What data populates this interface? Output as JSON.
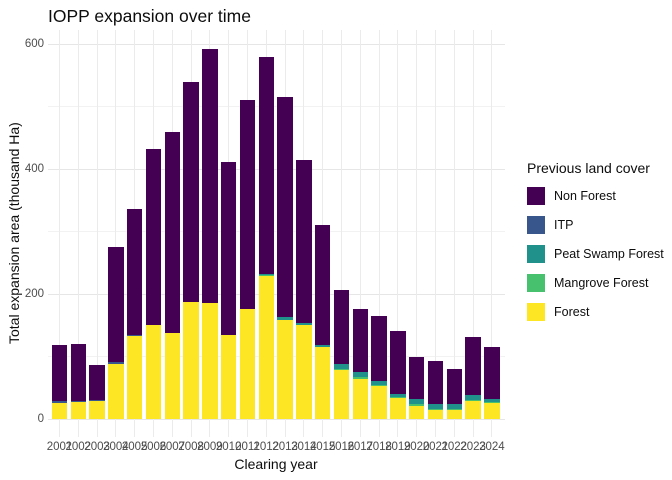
{
  "title": "IOPP expansion over time",
  "chart_data": {
    "type": "bar",
    "stacked": true,
    "title": "IOPP expansion over time",
    "xlabel": "Clearing year",
    "ylabel": "Total expansion area (thousand Ha)",
    "ylim": [
      0,
      620
    ],
    "yticks": [
      0,
      200,
      400,
      600
    ],
    "yminor": [
      100,
      300,
      500
    ],
    "grid": "major-and-minor-horizontal, major-vertical-per-category",
    "legend_title": "Previous land cover",
    "legend_position": "right",
    "categories": [
      "2001",
      "2002",
      "2003",
      "2004",
      "2005",
      "2006",
      "2007",
      "2008",
      "2009",
      "2010",
      "2011",
      "2012",
      "2013",
      "2014",
      "2015",
      "2016",
      "2017",
      "2018",
      "2019",
      "2020",
      "2021",
      "2022",
      "2023",
      "2024"
    ],
    "series": [
      {
        "name": "Non Forest",
        "color": "#440154",
        "values": [
          90,
          92,
          55,
          185,
          201,
          282,
          322,
          353,
          406,
          277,
          335,
          348,
          352,
          261,
          192,
          118,
          101,
          104,
          100,
          66,
          69,
          55,
          93,
          82
        ]
      },
      {
        "name": "ITP",
        "color": "#39568C",
        "values": [
          3,
          1,
          2,
          3,
          2,
          0,
          0,
          0,
          0,
          0,
          0,
          0,
          0,
          0,
          0,
          0,
          0,
          0,
          0,
          0,
          0,
          0,
          0,
          0
        ]
      },
      {
        "name": "Peat Swamp Forest",
        "color": "#21918C",
        "values": [
          0,
          0,
          0,
          0,
          0,
          0,
          0,
          0,
          0,
          0,
          0,
          2,
          5,
          3,
          4,
          8,
          8,
          6,
          5,
          9,
          7,
          8,
          7,
          5
        ]
      },
      {
        "name": "Mangrove Forest",
        "color": "#47C16E",
        "values": [
          0,
          0,
          0,
          0,
          0,
          0,
          0,
          0,
          0,
          0,
          0,
          1,
          0,
          0,
          0,
          2,
          2,
          2,
          2,
          3,
          2,
          2,
          2,
          2
        ]
      },
      {
        "name": "Forest",
        "color": "#FDE725",
        "values": [
          25,
          27,
          28,
          87,
          132,
          150,
          137,
          186,
          185,
          133,
          175,
          228,
          158,
          150,
          114,
          78,
          64,
          52,
          33,
          20,
          14,
          14,
          28,
          25
        ]
      }
    ],
    "note_stack_order_bottom_to_top": [
      "Forest",
      "Mangrove Forest",
      "Peat Swamp Forest",
      "ITP",
      "Non Forest"
    ]
  }
}
